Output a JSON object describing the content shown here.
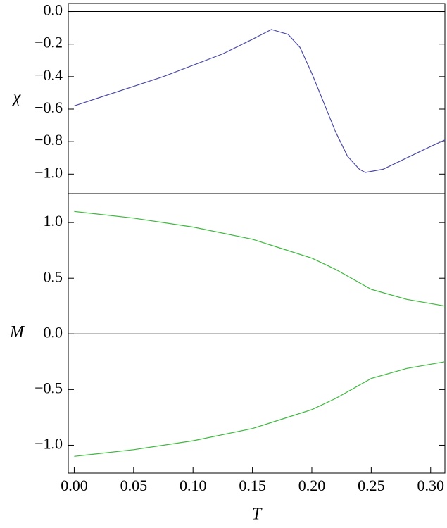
{
  "chart_data": [
    {
      "type": "line",
      "ylabel": "χ",
      "x": [
        0,
        0.025,
        0.05,
        0.075,
        0.1,
        0.125,
        0.15,
        0.166,
        0.18,
        0.19,
        0.2,
        0.21,
        0.22,
        0.23,
        0.24,
        0.245,
        0.26,
        0.28,
        0.3,
        0.312
      ],
      "series": [
        {
          "color": "#4b4ba6",
          "values": [
            -0.58,
            -0.52,
            -0.46,
            -0.4,
            -0.33,
            -0.26,
            -0.17,
            -0.11,
            -0.14,
            -0.22,
            -0.38,
            -0.56,
            -0.74,
            -0.89,
            -0.97,
            -0.99,
            -0.97,
            -0.9,
            -0.83,
            -0.79
          ]
        }
      ],
      "xlim": [
        -0.005,
        0.312
      ],
      "ylim": [
        -1.12,
        0.05
      ],
      "yticks": [
        {
          "value": 0,
          "label": "0.0"
        },
        {
          "value": -0.2,
          "label": "−0.2"
        },
        {
          "value": -0.4,
          "label": "−0.4"
        },
        {
          "value": -0.6,
          "label": "−0.6"
        },
        {
          "value": -0.8,
          "label": "−0.8"
        },
        {
          "value": -1.0,
          "label": "−1.0"
        }
      ]
    },
    {
      "type": "line",
      "ylabel": "M",
      "xlabel": "T",
      "x": [
        0,
        0.05,
        0.1,
        0.15,
        0.2,
        0.22,
        0.25,
        0.28,
        0.312
      ],
      "series": [
        {
          "color": "#3cb83c",
          "values": [
            1.1,
            1.04,
            0.96,
            0.85,
            0.68,
            0.58,
            0.4,
            0.31,
            0.25
          ]
        },
        {
          "color": "#3cb83c",
          "values": [
            -1.1,
            -1.04,
            -0.96,
            -0.85,
            -0.68,
            -0.58,
            -0.4,
            -0.31,
            -0.25
          ]
        }
      ],
      "xlim": [
        -0.005,
        0.312
      ],
      "ylim": [
        -1.25,
        1.26
      ],
      "xticks": [
        {
          "value": 0,
          "label": "0.00"
        },
        {
          "value": 0.05,
          "label": "0.05"
        },
        {
          "value": 0.1,
          "label": "0.10"
        },
        {
          "value": 0.15,
          "label": "0.15"
        },
        {
          "value": 0.2,
          "label": "0.20"
        },
        {
          "value": 0.25,
          "label": "0.25"
        },
        {
          "value": 0.3,
          "label": "0.30"
        }
      ],
      "yticks": [
        {
          "value": 1.0,
          "label": "1.0"
        },
        {
          "value": 0.5,
          "label": "0.5"
        },
        {
          "value": 0,
          "label": "0.0"
        },
        {
          "value": -0.5,
          "label": "−0.5"
        },
        {
          "value": -1.0,
          "label": "−1.0"
        }
      ]
    }
  ]
}
